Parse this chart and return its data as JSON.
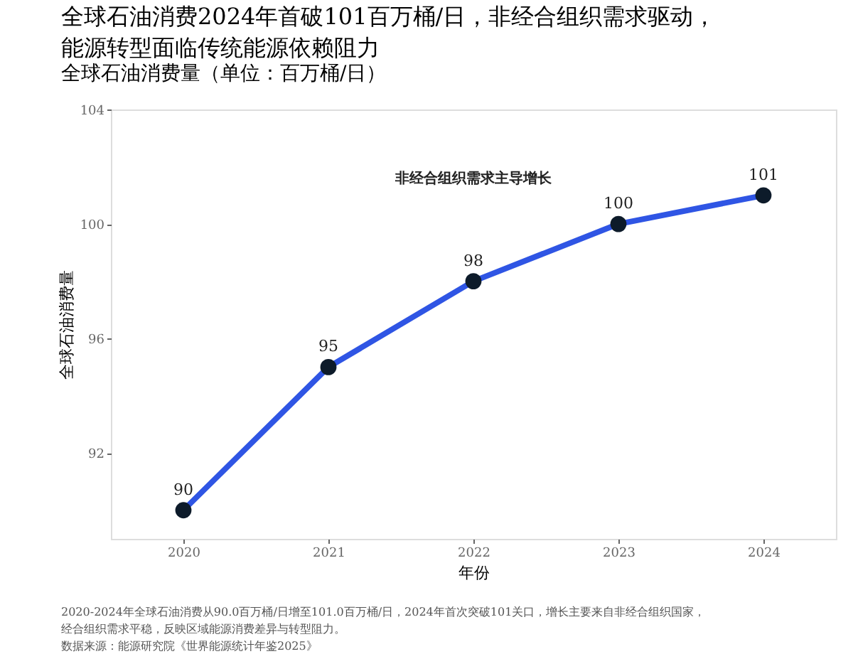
{
  "chart_data": {
    "type": "line",
    "title": [
      "全球石油消费2024年首破101百万桶/日，非经合组织需求驱动，",
      "能源转型面临传统能源依赖阻力"
    ],
    "subtitle": "全球石油消费量（单位：百万桶/日）",
    "xlabel": "年份",
    "ylabel": "全球石油消费量",
    "categories": [
      "2020",
      "2021",
      "2022",
      "2023",
      "2024"
    ],
    "series": [
      {
        "color": "#2f55e4",
        "values": [
          90,
          95,
          98,
          100,
          101
        ]
      }
    ],
    "ylim": [
      89,
      104
    ],
    "yticks": [
      92,
      96,
      100,
      104
    ],
    "data_labels": true,
    "marker": "circle",
    "line_style": "solid",
    "grid": false,
    "legend": false,
    "annotations": [
      "非经合组织需求主导增长",
      "2020-2024年全球石油消费从90.0百万桶/日增至101.0百万桶/日，2024年首次突破101关口，增长主要来自非经合组织国家，",
      "经合组织需求平稳，反映区域能源消费差异与转型阻力。",
      "数据来源：能源研究院《世界能源统计年鉴2025》"
    ]
  }
}
